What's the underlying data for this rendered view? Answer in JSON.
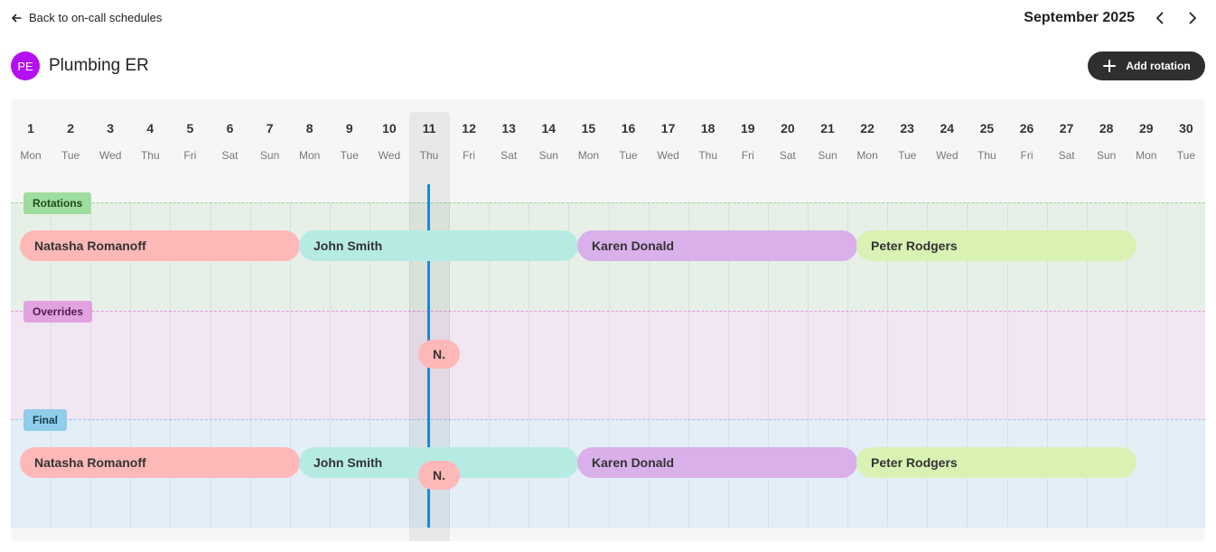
{
  "back_link": {
    "label": "Back to on-call schedules"
  },
  "month_nav": {
    "title": "September 2025"
  },
  "schedule": {
    "avatar_initials": "PE",
    "title": "Plumbing ER",
    "avatar_color": "#b40ff0"
  },
  "actions": {
    "add_rotation_label": "Add rotation"
  },
  "calendar": {
    "today": "11",
    "days": [
      {
        "num": "1",
        "name": "Mon"
      },
      {
        "num": "2",
        "name": "Tue"
      },
      {
        "num": "3",
        "name": "Wed"
      },
      {
        "num": "4",
        "name": "Thu"
      },
      {
        "num": "5",
        "name": "Fri"
      },
      {
        "num": "6",
        "name": "Sat"
      },
      {
        "num": "7",
        "name": "Sun"
      },
      {
        "num": "8",
        "name": "Mon"
      },
      {
        "num": "9",
        "name": "Tue"
      },
      {
        "num": "10",
        "name": "Wed"
      },
      {
        "num": "11",
        "name": "Thu"
      },
      {
        "num": "12",
        "name": "Fri"
      },
      {
        "num": "13",
        "name": "Sat"
      },
      {
        "num": "14",
        "name": "Sun"
      },
      {
        "num": "15",
        "name": "Mon"
      },
      {
        "num": "16",
        "name": "Tue"
      },
      {
        "num": "17",
        "name": "Wed"
      },
      {
        "num": "18",
        "name": "Thu"
      },
      {
        "num": "19",
        "name": "Fri"
      },
      {
        "num": "20",
        "name": "Sat"
      },
      {
        "num": "21",
        "name": "Sun"
      },
      {
        "num": "22",
        "name": "Mon"
      },
      {
        "num": "23",
        "name": "Tue"
      },
      {
        "num": "24",
        "name": "Wed"
      },
      {
        "num": "25",
        "name": "Thu"
      },
      {
        "num": "26",
        "name": "Fri"
      },
      {
        "num": "27",
        "name": "Sat"
      },
      {
        "num": "28",
        "name": "Sun"
      },
      {
        "num": "29",
        "name": "Mon"
      },
      {
        "num": "30",
        "name": "Tue"
      }
    ],
    "sections": {
      "rotations": {
        "label": "Rotations",
        "color": "#9fdc9f"
      },
      "overrides": {
        "label": "Overrides",
        "color": "#e0a3e0"
      },
      "final": {
        "label": "Final",
        "color": "#8fcdea"
      }
    },
    "rotations": [
      {
        "name": "Natasha Romanoff",
        "color": "#ffb8b8"
      },
      {
        "name": "John Smith",
        "color": "#b6ebe4"
      },
      {
        "name": "Karen Donald",
        "color": "#d9b0ea"
      },
      {
        "name": "Peter Rodgers",
        "color": "#d9f2b4"
      }
    ],
    "overrides": [
      {
        "label": "N.",
        "color": "#ffb8b8"
      }
    ],
    "final": [
      {
        "name": "Natasha Romanoff",
        "color": "#ffb8b8"
      },
      {
        "name": "John Smith",
        "color": "#b6ebe4"
      },
      {
        "name": "Karen Donald",
        "color": "#d9b0ea"
      },
      {
        "name": "Peter Rodgers",
        "color": "#d9f2b4"
      }
    ],
    "final_override": {
      "label": "N.",
      "color": "#ffb8b8"
    }
  }
}
